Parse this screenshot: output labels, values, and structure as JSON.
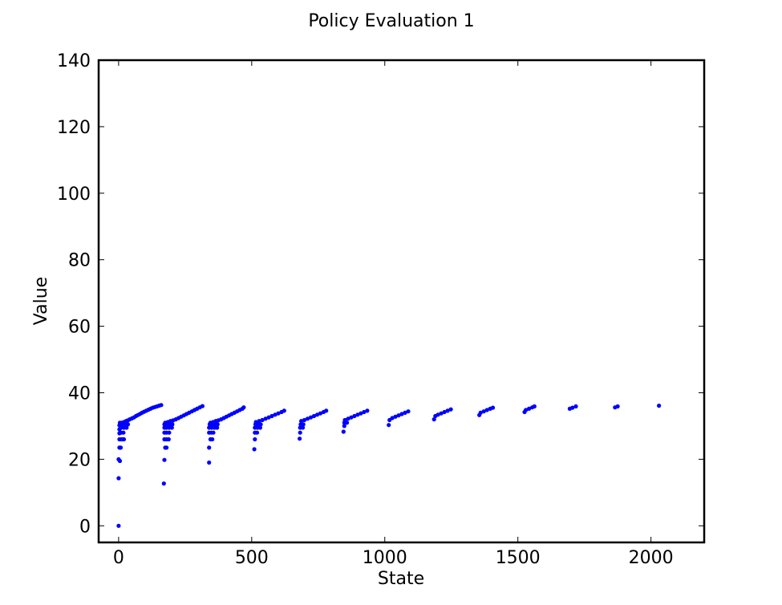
{
  "chart_data": {
    "type": "scatter",
    "title": "Policy Evaluation 1",
    "xlabel": "State",
    "ylabel": "Value",
    "xlim": [
      -75,
      2200
    ],
    "ylim": [
      -5,
      140
    ],
    "xticks": [
      0,
      500,
      1000,
      1500,
      2000
    ],
    "yticks": [
      0,
      20,
      40,
      60,
      80,
      100,
      120,
      140
    ],
    "xtick_labels": [
      "0",
      "500",
      "1000",
      "1500",
      "2000"
    ],
    "ytick_labels": [
      "0",
      "20",
      "40",
      "60",
      "80",
      "100",
      "120",
      "140"
    ],
    "grid": false,
    "marker_color": "#0000ff",
    "points": [
      [
        0,
        0
      ],
      [
        0,
        14.3
      ],
      [
        0,
        20
      ],
      [
        5,
        19.5
      ],
      [
        3,
        23.5
      ],
      [
        8,
        23.5
      ],
      [
        3,
        26
      ],
      [
        10,
        26
      ],
      [
        15,
        26
      ],
      [
        20,
        26
      ],
      [
        3,
        27.8
      ],
      [
        10,
        28
      ],
      [
        18,
        28
      ],
      [
        3,
        29
      ],
      [
        10,
        29.5
      ],
      [
        20,
        29.5
      ],
      [
        30,
        29.5
      ],
      [
        3,
        30.2
      ],
      [
        8,
        30.5
      ],
      [
        15,
        30.5
      ],
      [
        25,
        30.5
      ],
      [
        35,
        30.5
      ],
      [
        5,
        31
      ],
      [
        12,
        31
      ],
      [
        20,
        31.2
      ],
      [
        28,
        31.5
      ],
      [
        35,
        31.7
      ],
      [
        42,
        32
      ],
      [
        50,
        32.3
      ],
      [
        58,
        32.6
      ],
      [
        65,
        33
      ],
      [
        72,
        33.3
      ],
      [
        80,
        33.6
      ],
      [
        88,
        34
      ],
      [
        96,
        34.3
      ],
      [
        104,
        34.6
      ],
      [
        112,
        34.9
      ],
      [
        120,
        35.2
      ],
      [
        128,
        35.5
      ],
      [
        136,
        35.7
      ],
      [
        144,
        35.9
      ],
      [
        152,
        36.1
      ],
      [
        160,
        36.3
      ],
      [
        170,
        12.7
      ],
      [
        172,
        19.8
      ],
      [
        175,
        23.5
      ],
      [
        180,
        23.5
      ],
      [
        172,
        26
      ],
      [
        180,
        26
      ],
      [
        188,
        26
      ],
      [
        172,
        28
      ],
      [
        180,
        28
      ],
      [
        190,
        28
      ],
      [
        172,
        29.5
      ],
      [
        180,
        29.5
      ],
      [
        190,
        29.5
      ],
      [
        200,
        29.5
      ],
      [
        172,
        30.5
      ],
      [
        182,
        30.5
      ],
      [
        192,
        30.5
      ],
      [
        202,
        30.5
      ],
      [
        175,
        31
      ],
      [
        185,
        31.2
      ],
      [
        195,
        31.5
      ],
      [
        205,
        31.7
      ],
      [
        215,
        32
      ],
      [
        225,
        32.4
      ],
      [
        235,
        32.8
      ],
      [
        245,
        33.2
      ],
      [
        255,
        33.6
      ],
      [
        265,
        34
      ],
      [
        275,
        34.4
      ],
      [
        285,
        34.8
      ],
      [
        295,
        35.2
      ],
      [
        305,
        35.6
      ],
      [
        315,
        36
      ],
      [
        340,
        19
      ],
      [
        340,
        23.5
      ],
      [
        345,
        26
      ],
      [
        352,
        26
      ],
      [
        340,
        28
      ],
      [
        348,
        28
      ],
      [
        356,
        28
      ],
      [
        340,
        29.5
      ],
      [
        350,
        29.5
      ],
      [
        360,
        29.5
      ],
      [
        370,
        29.5
      ],
      [
        342,
        30.5
      ],
      [
        352,
        30.5
      ],
      [
        362,
        30.5
      ],
      [
        372,
        30.5
      ],
      [
        345,
        31
      ],
      [
        355,
        31.2
      ],
      [
        365,
        31.5
      ],
      [
        375,
        31.7
      ],
      [
        385,
        32
      ],
      [
        395,
        32.4
      ],
      [
        405,
        32.8
      ],
      [
        415,
        33.2
      ],
      [
        425,
        33.6
      ],
      [
        435,
        34
      ],
      [
        445,
        34.4
      ],
      [
        455,
        34.8
      ],
      [
        465,
        35.2
      ],
      [
        470,
        35.6
      ],
      [
        510,
        23
      ],
      [
        512,
        26
      ],
      [
        512,
        28
      ],
      [
        520,
        28
      ],
      [
        512,
        29.5
      ],
      [
        522,
        29.5
      ],
      [
        532,
        29.5
      ],
      [
        514,
        30.5
      ],
      [
        524,
        30.5
      ],
      [
        534,
        30.5
      ],
      [
        516,
        31.2
      ],
      [
        528,
        31.5
      ],
      [
        540,
        31.8
      ],
      [
        552,
        32.2
      ],
      [
        564,
        32.6
      ],
      [
        576,
        33
      ],
      [
        588,
        33.4
      ],
      [
        600,
        33.8
      ],
      [
        612,
        34.2
      ],
      [
        622,
        34.6
      ],
      [
        680,
        26.2
      ],
      [
        682,
        28
      ],
      [
        682,
        29.5
      ],
      [
        692,
        29.5
      ],
      [
        684,
        30.5
      ],
      [
        694,
        30.5
      ],
      [
        686,
        31.5
      ],
      [
        698,
        31.8
      ],
      [
        710,
        32.2
      ],
      [
        722,
        32.6
      ],
      [
        734,
        33
      ],
      [
        746,
        33.4
      ],
      [
        758,
        33.8
      ],
      [
        770,
        34.2
      ],
      [
        780,
        34.6
      ],
      [
        845,
        28.3
      ],
      [
        848,
        30
      ],
      [
        848,
        31
      ],
      [
        858,
        31
      ],
      [
        850,
        31.8
      ],
      [
        862,
        32.2
      ],
      [
        874,
        32.6
      ],
      [
        886,
        33
      ],
      [
        898,
        33.4
      ],
      [
        910,
        33.8
      ],
      [
        922,
        34.2
      ],
      [
        934,
        34.6
      ],
      [
        1015,
        30.3
      ],
      [
        1018,
        31.8
      ],
      [
        1028,
        32.4
      ],
      [
        1040,
        32.8
      ],
      [
        1052,
        33.2
      ],
      [
        1064,
        33.6
      ],
      [
        1076,
        34
      ],
      [
        1088,
        34.4
      ],
      [
        1185,
        32
      ],
      [
        1190,
        33
      ],
      [
        1200,
        33.4
      ],
      [
        1212,
        33.8
      ],
      [
        1224,
        34.2
      ],
      [
        1236,
        34.6
      ],
      [
        1248,
        35
      ],
      [
        1355,
        33.3
      ],
      [
        1360,
        34
      ],
      [
        1372,
        34.4
      ],
      [
        1384,
        34.8
      ],
      [
        1396,
        35.2
      ],
      [
        1406,
        35.5
      ],
      [
        1525,
        34.2
      ],
      [
        1530,
        34.8
      ],
      [
        1542,
        35.2
      ],
      [
        1554,
        35.6
      ],
      [
        1562,
        35.9
      ],
      [
        1695,
        35.2
      ],
      [
        1705,
        35.5
      ],
      [
        1718,
        35.9
      ],
      [
        1865,
        35.6
      ],
      [
        1875,
        35.9
      ],
      [
        2030,
        36.1
      ]
    ]
  }
}
